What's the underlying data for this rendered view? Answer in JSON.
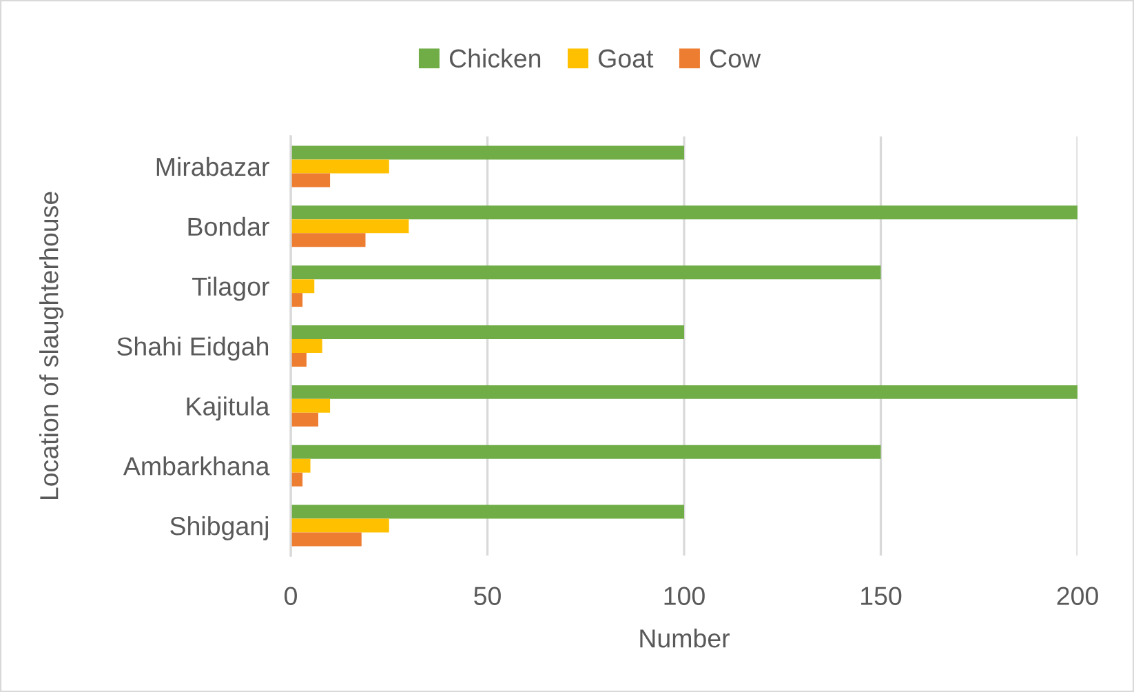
{
  "chart_data": {
    "type": "bar",
    "orientation": "horizontal",
    "xlabel": "Number",
    "ylabel": "Location of slaughterhouse",
    "categories": [
      "Mirabazar",
      "Bondar",
      "Tilagor",
      "Shahi Eidgah",
      "Kajitula",
      "Ambarkhana",
      "Shibganj"
    ],
    "series": [
      {
        "name": "Chicken",
        "color": "#70ad47",
        "values": [
          100,
          200,
          150,
          100,
          200,
          150,
          100
        ]
      },
      {
        "name": "Goat",
        "color": "#ffc000",
        "values": [
          25,
          30,
          6,
          8,
          10,
          5,
          25
        ]
      },
      {
        "name": "Cow",
        "color": "#ed7d31",
        "values": [
          10,
          19,
          3,
          4,
          7,
          3,
          18
        ]
      }
    ],
    "xlim": [
      0,
      200
    ],
    "xticks": [
      0,
      50,
      100,
      150,
      200
    ],
    "grid": "x",
    "legend": "top"
  }
}
